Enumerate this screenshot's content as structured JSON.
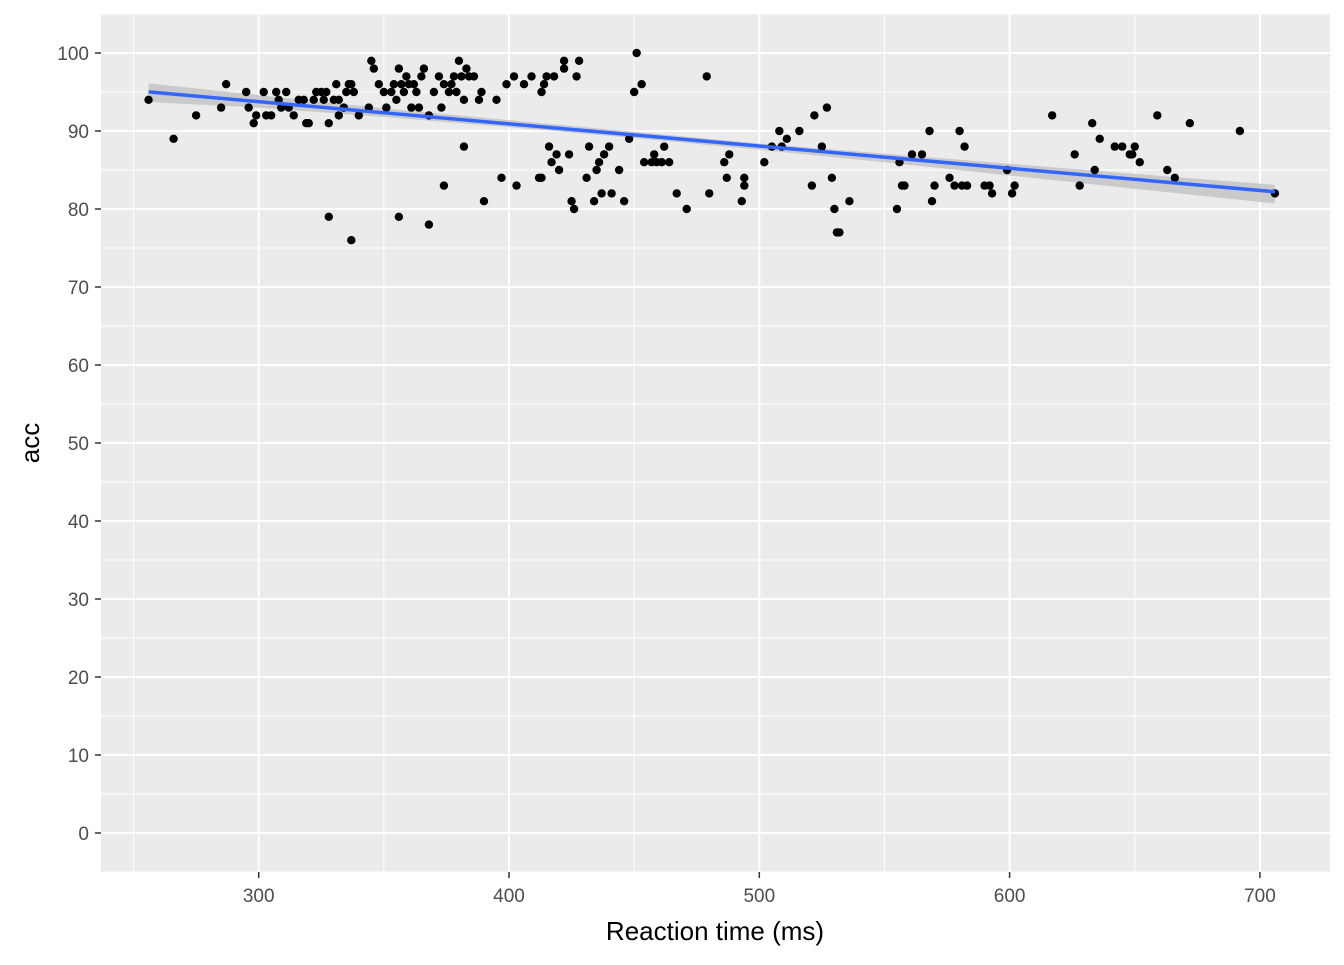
{
  "chart_data": {
    "type": "scatter",
    "title": "",
    "xlabel": "Reaction time (ms)",
    "ylabel": "acc",
    "xlim": [
      237,
      728
    ],
    "ylim": [
      -5,
      105
    ],
    "x_ticks": [
      300,
      400,
      500,
      600,
      700
    ],
    "y_ticks": [
      0,
      10,
      20,
      30,
      40,
      50,
      60,
      70,
      80,
      90,
      100
    ],
    "grid": true,
    "colors": {
      "panel_background": "#ebebeb",
      "grid": "#ffffff",
      "points": "#000000",
      "fit_line": "#3366ff",
      "confidence_band": "#c4c4c4"
    },
    "points": [
      {
        "x": 256,
        "y": 94
      },
      {
        "x": 266,
        "y": 89
      },
      {
        "x": 275,
        "y": 92
      },
      {
        "x": 285,
        "y": 93
      },
      {
        "x": 287,
        "y": 96
      },
      {
        "x": 295,
        "y": 95
      },
      {
        "x": 296,
        "y": 93
      },
      {
        "x": 298,
        "y": 91
      },
      {
        "x": 299,
        "y": 92
      },
      {
        "x": 302,
        "y": 95
      },
      {
        "x": 303,
        "y": 92
      },
      {
        "x": 305,
        "y": 92
      },
      {
        "x": 307,
        "y": 95
      },
      {
        "x": 308,
        "y": 94
      },
      {
        "x": 309,
        "y": 93
      },
      {
        "x": 311,
        "y": 95
      },
      {
        "x": 312,
        "y": 93
      },
      {
        "x": 314,
        "y": 92
      },
      {
        "x": 316,
        "y": 94
      },
      {
        "x": 318,
        "y": 94
      },
      {
        "x": 319,
        "y": 91
      },
      {
        "x": 320,
        "y": 91
      },
      {
        "x": 322,
        "y": 94
      },
      {
        "x": 323,
        "y": 95
      },
      {
        "x": 325,
        "y": 95
      },
      {
        "x": 326,
        "y": 94
      },
      {
        "x": 327,
        "y": 95
      },
      {
        "x": 328,
        "y": 79
      },
      {
        "x": 328,
        "y": 91
      },
      {
        "x": 330,
        "y": 94
      },
      {
        "x": 331,
        "y": 96
      },
      {
        "x": 332,
        "y": 94
      },
      {
        "x": 332,
        "y": 92
      },
      {
        "x": 334,
        "y": 93
      },
      {
        "x": 335,
        "y": 95
      },
      {
        "x": 336,
        "y": 96
      },
      {
        "x": 337,
        "y": 96
      },
      {
        "x": 337,
        "y": 76
      },
      {
        "x": 338,
        "y": 95
      },
      {
        "x": 340,
        "y": 92
      },
      {
        "x": 344,
        "y": 93
      },
      {
        "x": 345,
        "y": 99
      },
      {
        "x": 346,
        "y": 98
      },
      {
        "x": 348,
        "y": 96
      },
      {
        "x": 350,
        "y": 95
      },
      {
        "x": 351,
        "y": 93
      },
      {
        "x": 353,
        "y": 95
      },
      {
        "x": 354,
        "y": 96
      },
      {
        "x": 355,
        "y": 94
      },
      {
        "x": 356,
        "y": 98
      },
      {
        "x": 356,
        "y": 79
      },
      {
        "x": 357,
        "y": 96
      },
      {
        "x": 358,
        "y": 95
      },
      {
        "x": 359,
        "y": 97
      },
      {
        "x": 360,
        "y": 96
      },
      {
        "x": 361,
        "y": 93
      },
      {
        "x": 362,
        "y": 96
      },
      {
        "x": 363,
        "y": 95
      },
      {
        "x": 364,
        "y": 93
      },
      {
        "x": 365,
        "y": 97
      },
      {
        "x": 366,
        "y": 98
      },
      {
        "x": 368,
        "y": 92
      },
      {
        "x": 368,
        "y": 78
      },
      {
        "x": 370,
        "y": 95
      },
      {
        "x": 372,
        "y": 97
      },
      {
        "x": 373,
        "y": 93
      },
      {
        "x": 374,
        "y": 96
      },
      {
        "x": 374,
        "y": 83
      },
      {
        "x": 376,
        "y": 95
      },
      {
        "x": 377,
        "y": 96
      },
      {
        "x": 378,
        "y": 97
      },
      {
        "x": 379,
        "y": 95
      },
      {
        "x": 380,
        "y": 99
      },
      {
        "x": 381,
        "y": 97
      },
      {
        "x": 382,
        "y": 88
      },
      {
        "x": 382,
        "y": 94
      },
      {
        "x": 383,
        "y": 98
      },
      {
        "x": 384,
        "y": 97
      },
      {
        "x": 386,
        "y": 97
      },
      {
        "x": 388,
        "y": 94
      },
      {
        "x": 389,
        "y": 95
      },
      {
        "x": 390,
        "y": 81
      },
      {
        "x": 395,
        "y": 94
      },
      {
        "x": 397,
        "y": 84
      },
      {
        "x": 399,
        "y": 96
      },
      {
        "x": 402,
        "y": 97
      },
      {
        "x": 403,
        "y": 83
      },
      {
        "x": 406,
        "y": 96
      },
      {
        "x": 409,
        "y": 97
      },
      {
        "x": 412,
        "y": 84
      },
      {
        "x": 413,
        "y": 84
      },
      {
        "x": 413,
        "y": 95
      },
      {
        "x": 414,
        "y": 96
      },
      {
        "x": 415,
        "y": 97
      },
      {
        "x": 416,
        "y": 88
      },
      {
        "x": 417,
        "y": 86
      },
      {
        "x": 418,
        "y": 97
      },
      {
        "x": 419,
        "y": 87
      },
      {
        "x": 420,
        "y": 85
      },
      {
        "x": 422,
        "y": 99
      },
      {
        "x": 422,
        "y": 98
      },
      {
        "x": 424,
        "y": 87
      },
      {
        "x": 425,
        "y": 81
      },
      {
        "x": 426,
        "y": 80
      },
      {
        "x": 427,
        "y": 97
      },
      {
        "x": 428,
        "y": 99
      },
      {
        "x": 431,
        "y": 84
      },
      {
        "x": 432,
        "y": 88
      },
      {
        "x": 434,
        "y": 81
      },
      {
        "x": 435,
        "y": 85
      },
      {
        "x": 436,
        "y": 86
      },
      {
        "x": 437,
        "y": 82
      },
      {
        "x": 438,
        "y": 87
      },
      {
        "x": 440,
        "y": 88
      },
      {
        "x": 441,
        "y": 82
      },
      {
        "x": 444,
        "y": 85
      },
      {
        "x": 446,
        "y": 81
      },
      {
        "x": 448,
        "y": 89
      },
      {
        "x": 450,
        "y": 95
      },
      {
        "x": 451,
        "y": 100
      },
      {
        "x": 453,
        "y": 96
      },
      {
        "x": 454,
        "y": 86
      },
      {
        "x": 457,
        "y": 86
      },
      {
        "x": 458,
        "y": 87
      },
      {
        "x": 459,
        "y": 86
      },
      {
        "x": 461,
        "y": 86
      },
      {
        "x": 462,
        "y": 88
      },
      {
        "x": 464,
        "y": 86
      },
      {
        "x": 467,
        "y": 82
      },
      {
        "x": 471,
        "y": 80
      },
      {
        "x": 479,
        "y": 97
      },
      {
        "x": 480,
        "y": 82
      },
      {
        "x": 486,
        "y": 86
      },
      {
        "x": 487,
        "y": 84
      },
      {
        "x": 488,
        "y": 87
      },
      {
        "x": 493,
        "y": 81
      },
      {
        "x": 494,
        "y": 84
      },
      {
        "x": 494,
        "y": 83
      },
      {
        "x": 502,
        "y": 86
      },
      {
        "x": 505,
        "y": 88
      },
      {
        "x": 508,
        "y": 90
      },
      {
        "x": 509,
        "y": 88
      },
      {
        "x": 511,
        "y": 89
      },
      {
        "x": 516,
        "y": 90
      },
      {
        "x": 521,
        "y": 83
      },
      {
        "x": 522,
        "y": 92
      },
      {
        "x": 525,
        "y": 88
      },
      {
        "x": 527,
        "y": 93
      },
      {
        "x": 529,
        "y": 84
      },
      {
        "x": 530,
        "y": 80
      },
      {
        "x": 531,
        "y": 77
      },
      {
        "x": 532,
        "y": 77
      },
      {
        "x": 536,
        "y": 81
      },
      {
        "x": 555,
        "y": 80
      },
      {
        "x": 556,
        "y": 86
      },
      {
        "x": 557,
        "y": 83
      },
      {
        "x": 558,
        "y": 83
      },
      {
        "x": 561,
        "y": 87
      },
      {
        "x": 565,
        "y": 87
      },
      {
        "x": 568,
        "y": 90
      },
      {
        "x": 569,
        "y": 81
      },
      {
        "x": 570,
        "y": 83
      },
      {
        "x": 576,
        "y": 84
      },
      {
        "x": 578,
        "y": 83
      },
      {
        "x": 580,
        "y": 90
      },
      {
        "x": 581,
        "y": 83
      },
      {
        "x": 582,
        "y": 88
      },
      {
        "x": 583,
        "y": 83
      },
      {
        "x": 590,
        "y": 83
      },
      {
        "x": 592,
        "y": 83
      },
      {
        "x": 593,
        "y": 82
      },
      {
        "x": 599,
        "y": 85
      },
      {
        "x": 601,
        "y": 82
      },
      {
        "x": 602,
        "y": 83
      },
      {
        "x": 617,
        "y": 92
      },
      {
        "x": 626,
        "y": 87
      },
      {
        "x": 628,
        "y": 83
      },
      {
        "x": 633,
        "y": 91
      },
      {
        "x": 634,
        "y": 85
      },
      {
        "x": 636,
        "y": 89
      },
      {
        "x": 642,
        "y": 88
      },
      {
        "x": 645,
        "y": 88
      },
      {
        "x": 648,
        "y": 87
      },
      {
        "x": 649,
        "y": 87
      },
      {
        "x": 650,
        "y": 88
      },
      {
        "x": 652,
        "y": 86
      },
      {
        "x": 659,
        "y": 92
      },
      {
        "x": 663,
        "y": 85
      },
      {
        "x": 666,
        "y": 84
      },
      {
        "x": 672,
        "y": 91
      },
      {
        "x": 692,
        "y": 90
      },
      {
        "x": 706,
        "y": 82
      }
    ],
    "fit": {
      "x_range": [
        256,
        706
      ],
      "intercept": 102.3,
      "slope": -0.02846,
      "band": [
        {
          "x": 256,
          "lo": 93.7,
          "hi": 96.1
        },
        {
          "x": 300,
          "lo": 93.0,
          "hi": 94.6
        },
        {
          "x": 350,
          "lo": 91.8,
          "hi": 92.9
        },
        {
          "x": 400,
          "lo": 90.5,
          "hi": 91.4
        },
        {
          "x": 450,
          "lo": 89.1,
          "hi": 89.9
        },
        {
          "x": 500,
          "lo": 87.6,
          "hi": 88.4
        },
        {
          "x": 550,
          "lo": 86.0,
          "hi": 87.1
        },
        {
          "x": 600,
          "lo": 84.3,
          "hi": 85.8
        },
        {
          "x": 650,
          "lo": 82.6,
          "hi": 84.5
        },
        {
          "x": 706,
          "lo": 80.7,
          "hi": 83.1
        }
      ]
    }
  }
}
